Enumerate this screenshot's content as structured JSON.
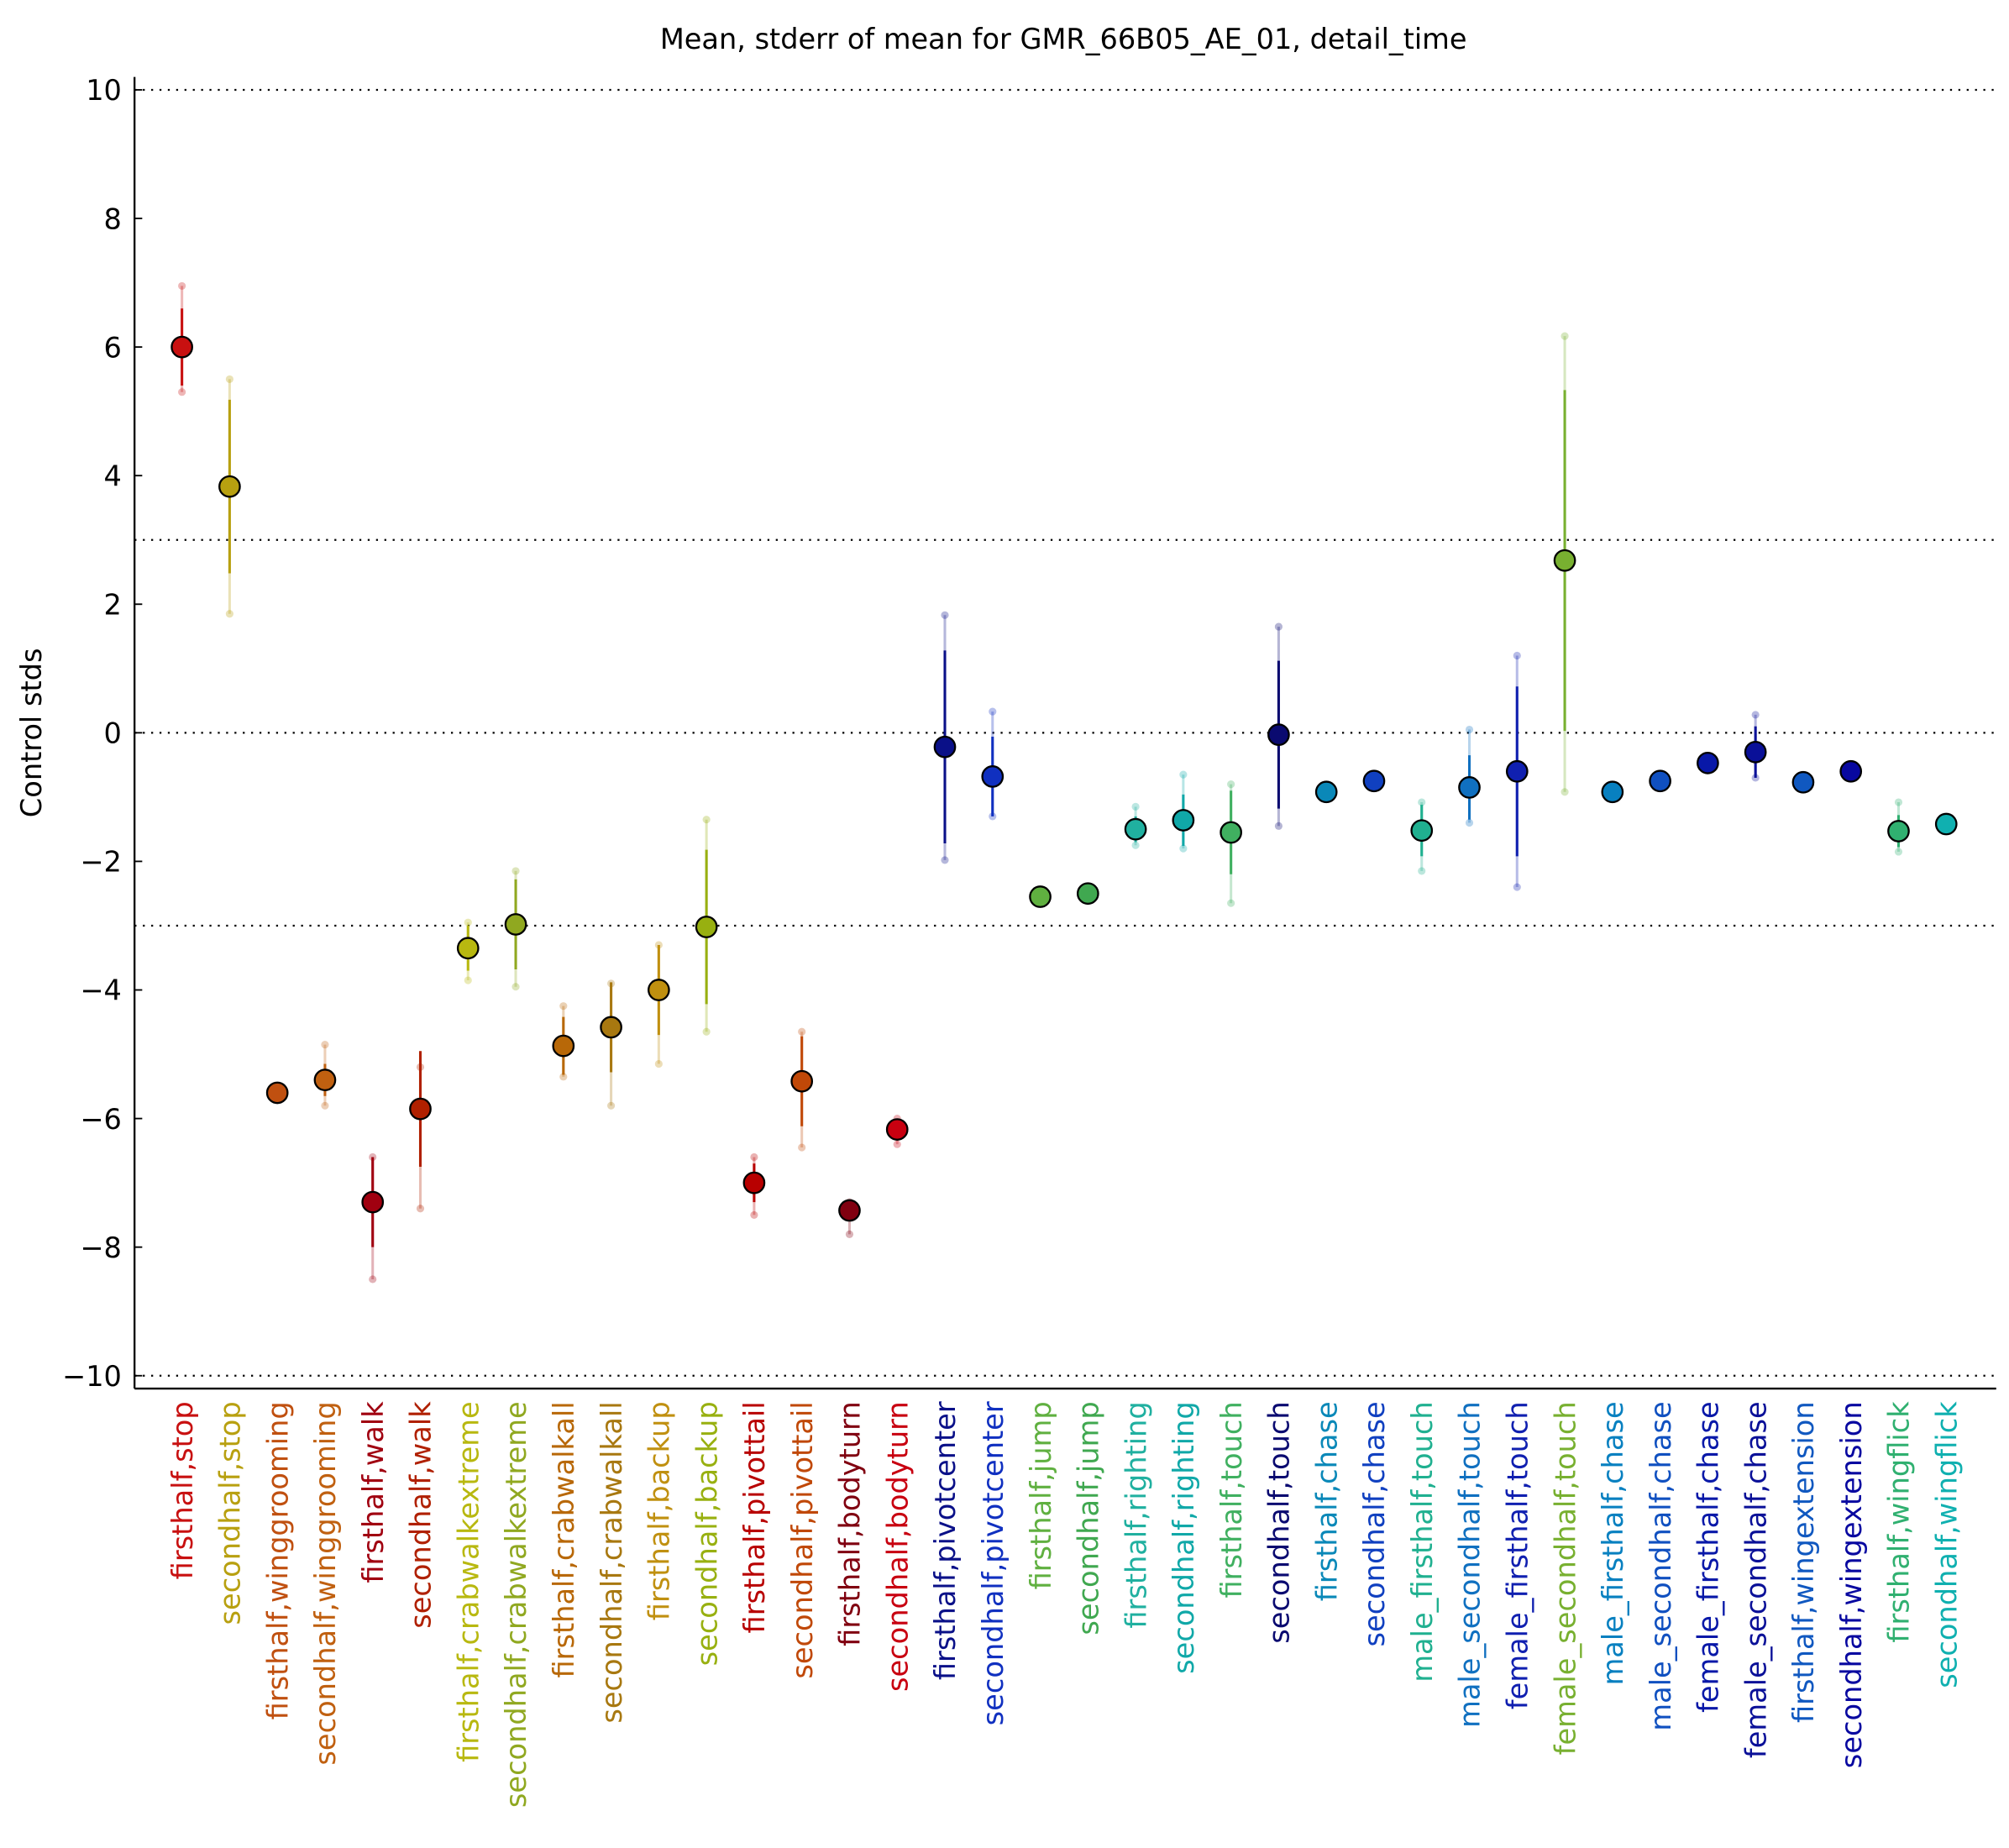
{
  "chart_data": {
    "type": "errorbar",
    "title": "Mean, stderr of mean for GMR_66B05_AE_01, detail_time",
    "y_label": "Control stds",
    "categories": [
      "firsthalf,stop",
      "secondhalf,stop",
      "firsthalf,winggrooming",
      "secondhalf,winggrooming",
      "firsthalf,walk",
      "secondhalf,walk",
      "firsthalf,crabwalkextreme",
      "secondhalf,crabwalkextreme",
      "firsthalf,crabwalkall",
      "secondhalf,crabwalkall",
      "firsthalf,backup",
      "secondhalf,backup",
      "firsthalf,pivottail",
      "secondhalf,pivottail",
      "firsthalf,bodyturn",
      "secondhalf,bodyturn",
      "firsthalf,pivotcenter",
      "secondhalf,pivotcenter",
      "firsthalf,jump",
      "secondhalf,jump",
      "firsthalf,righting",
      "secondhalf,righting",
      "firsthalf,touch",
      "secondhalf,touch",
      "firsthalf,chase",
      "secondhalf,chase",
      "male_firsthalf,touch",
      "male_secondhalf,touch",
      "female_firsthalf,touch",
      "female_secondhalf,touch",
      "male_firsthalf,chase",
      "male_secondhalf,chase",
      "female_firsthalf,chase",
      "female_secondhalf,chase",
      "firsthalf,wingextension",
      "secondhalf,wingextension",
      "firsthalf,wingflick",
      "secondhalf,wingflick"
    ],
    "values": [
      6.0,
      3.83,
      -5.6,
      -5.4,
      -7.3,
      -5.85,
      -3.35,
      -2.98,
      -4.87,
      -4.58,
      -4.0,
      -3.02,
      -7.0,
      -5.42,
      -7.43,
      -6.17,
      -0.22,
      -0.68,
      -2.55,
      -2.5,
      -1.5,
      -1.36,
      -1.55,
      -0.03,
      -0.92,
      -0.75,
      -1.52,
      -0.85,
      -0.6,
      2.68,
      -0.92,
      -0.75,
      -0.47,
      -0.3,
      -0.77,
      -0.6,
      -1.53,
      -1.42
    ],
    "errors": [
      0.6,
      1.35,
      0.1,
      0.25,
      0.7,
      0.9,
      0.35,
      0.7,
      0.45,
      0.7,
      0.7,
      1.2,
      0.3,
      0.7,
      0.15,
      0.1,
      1.5,
      0.62,
      0,
      0,
      0.2,
      0.4,
      0.65,
      1.15,
      0,
      0,
      0.4,
      0.5,
      1.32,
      2.65,
      0,
      0,
      0,
      0.4,
      0,
      0,
      0.25,
      0.1
    ],
    "low": [
      5.3,
      1.85,
      null,
      -5.8,
      -8.5,
      -7.4,
      -3.85,
      -3.95,
      -5.35,
      -5.8,
      -5.15,
      -4.65,
      -7.5,
      -6.45,
      -7.8,
      -6.4,
      -1.98,
      -1.3,
      null,
      null,
      -1.75,
      -1.8,
      -2.65,
      -1.45,
      null,
      null,
      -2.15,
      -1.4,
      -2.4,
      -0.92,
      null,
      null,
      null,
      -0.7,
      null,
      null,
      -1.85,
      null
    ],
    "high": [
      6.95,
      5.5,
      null,
      -4.85,
      -6.6,
      -5.2,
      -2.95,
      -2.15,
      -4.25,
      -3.9,
      -3.3,
      -1.35,
      -6.6,
      -4.65,
      -7.3,
      -6.0,
      1.83,
      0.33,
      null,
      null,
      -1.15,
      -0.65,
      -0.8,
      1.65,
      null,
      null,
      -1.08,
      0.05,
      1.2,
      6.17,
      null,
      null,
      null,
      0.28,
      null,
      null,
      -1.08,
      null
    ],
    "colors": [
      "#c81010",
      "#b8a010",
      "#c05010",
      "#c06010",
      "#a00010",
      "#b02000",
      "#b8b810",
      "#90a820",
      "#b86808",
      "#a87810",
      "#c09010",
      "#98b010",
      "#b80000",
      "#c04808",
      "#800010",
      "#c80010",
      "#0a1088",
      "#1030c0",
      "#60b040",
      "#40a850",
      "#20b0a0",
      "#10a8a8",
      "#40b060",
      "#0a0a70",
      "#0a88b8",
      "#1040c0",
      "#20b090",
      "#1070c0",
      "#1020b0",
      "#78b030",
      "#0880c0",
      "#1050c0",
      "#0818a8",
      "#0a1098",
      "#1058c0",
      "#0808a0",
      "#30b070",
      "#10b0b0"
    ],
    "ylim": [
      -10.2,
      10.2
    ],
    "yticks": [
      {
        "value": -10,
        "label": "−10"
      },
      {
        "value": -8,
        "label": "−8"
      },
      {
        "value": -6,
        "label": "−6"
      },
      {
        "value": -4,
        "label": "−4"
      },
      {
        "value": -2,
        "label": "−2"
      },
      0,
      2,
      4,
      6,
      8,
      10
    ],
    "reference_lines": [
      -10,
      -3,
      0,
      3,
      10
    ]
  }
}
